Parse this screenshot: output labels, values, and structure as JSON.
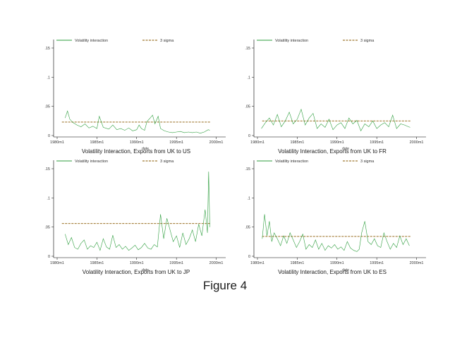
{
  "figure_caption": "Figure 4",
  "colors": {
    "series": "#2e9e3e",
    "threshold": "#8a5a00",
    "axis": "#000000"
  },
  "chart_data": [
    {
      "type": "line",
      "title": "Volatility Interaction, Exports from UK to US",
      "xlabel": "date",
      "ylabel": "",
      "xlim": [
        1980,
        2000.75
      ],
      "ylim": [
        0,
        0.15
      ],
      "xticks": [
        "1980m1",
        "1985m1",
        "1990m1",
        "1995m1",
        "2000m1"
      ],
      "yticks": [
        "0",
        ".05",
        ".1",
        ".15"
      ],
      "grid": false,
      "legend_position": "top",
      "legend": [
        "Volatility interaction",
        "3 sigma"
      ],
      "threshold": 0.023,
      "series": [
        {
          "name": "Volatility interaction",
          "x": [
            1981.0,
            1981.3,
            1981.6,
            1982.0,
            1982.5,
            1983.0,
            1983.5,
            1984.0,
            1984.5,
            1985.0,
            1985.3,
            1985.8,
            1986.5,
            1987.0,
            1987.5,
            1988.0,
            1988.5,
            1989.0,
            1989.5,
            1990.0,
            1990.3,
            1990.6,
            1991.0,
            1991.3,
            1991.7,
            1992.0,
            1992.3,
            1992.7,
            1993.0,
            1993.5,
            1994.0,
            1994.5,
            1995.0,
            1995.5,
            1996.0,
            1996.5,
            1997.0,
            1997.5,
            1998.0,
            1998.5,
            1999.0,
            1999.2
          ],
          "values": [
            0.03,
            0.042,
            0.028,
            0.022,
            0.018,
            0.015,
            0.02,
            0.013,
            0.016,
            0.012,
            0.033,
            0.014,
            0.011,
            0.018,
            0.01,
            0.012,
            0.009,
            0.013,
            0.008,
            0.01,
            0.018,
            0.012,
            0.009,
            0.024,
            0.03,
            0.035,
            0.02,
            0.033,
            0.012,
            0.008,
            0.006,
            0.005,
            0.006,
            0.007,
            0.005,
            0.006,
            0.005,
            0.006,
            0.004,
            0.006,
            0.01,
            0.009
          ]
        }
      ]
    },
    {
      "type": "line",
      "title": "Volatility Interaction, Exports from UK to FR",
      "xlabel": "date",
      "ylabel": "",
      "xlim": [
        1980,
        2000.75
      ],
      "ylim": [
        0,
        0.15
      ],
      "xticks": [
        "1980m1",
        "1985m1",
        "1990m1",
        "1995m1",
        "2000m1"
      ],
      "yticks": [
        "0",
        ".05",
        ".1",
        ".15"
      ],
      "grid": false,
      "legend_position": "top",
      "legend": [
        "Volatility interaction",
        "3 sigma"
      ],
      "threshold": 0.025,
      "series": [
        {
          "name": "Volatility interaction",
          "x": [
            1980.5,
            1981.0,
            1981.5,
            1982.0,
            1982.5,
            1983.0,
            1983.5,
            1984.0,
            1984.5,
            1985.0,
            1985.5,
            1986.0,
            1986.5,
            1987.0,
            1987.5,
            1988.0,
            1988.5,
            1989.0,
            1989.5,
            1990.0,
            1990.5,
            1991.0,
            1991.5,
            1992.0,
            1992.5,
            1993.0,
            1993.5,
            1994.0,
            1994.5,
            1995.0,
            1995.5,
            1996.0,
            1996.5,
            1997.0,
            1997.5,
            1998.0,
            1998.5,
            1999.0,
            1999.2
          ],
          "values": [
            0.012,
            0.022,
            0.03,
            0.018,
            0.036,
            0.015,
            0.025,
            0.04,
            0.02,
            0.028,
            0.045,
            0.018,
            0.03,
            0.038,
            0.012,
            0.02,
            0.014,
            0.028,
            0.01,
            0.018,
            0.022,
            0.012,
            0.03,
            0.02,
            0.026,
            0.008,
            0.02,
            0.015,
            0.025,
            0.012,
            0.018,
            0.022,
            0.015,
            0.035,
            0.012,
            0.02,
            0.018,
            0.015,
            0.014
          ]
        }
      ]
    },
    {
      "type": "line",
      "title": "Volatility Interaction, Exports from UK to JP",
      "xlabel": "date",
      "ylabel": "",
      "xlim": [
        1980,
        2000.75
      ],
      "ylim": [
        0,
        0.15
      ],
      "xticks": [
        "1980m1",
        "1985m1",
        "1990m1",
        "1995m1",
        "2000m1"
      ],
      "yticks": [
        "0",
        ".05",
        ".1",
        ".15"
      ],
      "grid": false,
      "legend_position": "top",
      "legend": [
        "Volatility interaction",
        "3 sigma"
      ],
      "threshold": 0.056,
      "series": [
        {
          "name": "Volatility interaction",
          "x": [
            1981.0,
            1981.4,
            1981.8,
            1982.2,
            1982.6,
            1983.0,
            1983.4,
            1983.8,
            1984.2,
            1984.6,
            1985.0,
            1985.4,
            1985.8,
            1986.2,
            1986.6,
            1987.0,
            1987.4,
            1987.8,
            1988.2,
            1988.6,
            1989.0,
            1989.4,
            1989.8,
            1990.2,
            1990.6,
            1991.0,
            1991.4,
            1991.8,
            1992.2,
            1992.6,
            1993.0,
            1993.4,
            1993.8,
            1994.2,
            1994.6,
            1995.0,
            1995.4,
            1995.8,
            1996.2,
            1996.6,
            1997.0,
            1997.4,
            1997.8,
            1998.2,
            1998.6,
            1998.9,
            1999.05,
            1999.2
          ],
          "values": [
            0.038,
            0.02,
            0.032,
            0.015,
            0.012,
            0.022,
            0.028,
            0.012,
            0.018,
            0.015,
            0.024,
            0.01,
            0.03,
            0.016,
            0.012,
            0.036,
            0.015,
            0.02,
            0.012,
            0.017,
            0.01,
            0.014,
            0.019,
            0.011,
            0.015,
            0.022,
            0.014,
            0.012,
            0.02,
            0.016,
            0.072,
            0.03,
            0.065,
            0.045,
            0.025,
            0.035,
            0.015,
            0.04,
            0.02,
            0.03,
            0.045,
            0.025,
            0.055,
            0.035,
            0.08,
            0.04,
            0.145,
            0.05
          ]
        }
      ]
    },
    {
      "type": "line",
      "title": "Volatility Interaction, Exports from UK to ES",
      "xlabel": "date",
      "ylabel": "",
      "xlim": [
        1980,
        2000.75
      ],
      "ylim": [
        0,
        0.15
      ],
      "xticks": [
        "1980m1",
        "1985m1",
        "1990m1",
        "1995m1",
        "2000m1"
      ],
      "yticks": [
        "0",
        ".05",
        ".1",
        ".15"
      ],
      "grid": false,
      "legend_position": "top",
      "legend": [
        "Volatility interaction",
        "3 sigma"
      ],
      "threshold": 0.034,
      "series": [
        {
          "name": "Volatility interaction",
          "x": [
            1980.6,
            1980.9,
            1981.2,
            1981.5,
            1981.8,
            1982.1,
            1982.5,
            1982.9,
            1983.3,
            1983.7,
            1984.1,
            1984.5,
            1984.9,
            1985.3,
            1985.7,
            1986.1,
            1986.5,
            1986.9,
            1987.3,
            1987.7,
            1988.1,
            1988.5,
            1988.9,
            1989.3,
            1989.7,
            1990.1,
            1990.5,
            1990.9,
            1991.3,
            1991.7,
            1992.1,
            1992.5,
            1992.8,
            1993.1,
            1993.5,
            1993.9,
            1994.3,
            1994.7,
            1995.1,
            1995.5,
            1995.9,
            1996.3,
            1996.7,
            1997.1,
            1997.5,
            1997.9,
            1998.3,
            1998.7,
            1999.1
          ],
          "values": [
            0.03,
            0.072,
            0.035,
            0.06,
            0.025,
            0.04,
            0.03,
            0.018,
            0.035,
            0.022,
            0.04,
            0.028,
            0.015,
            0.025,
            0.038,
            0.012,
            0.02,
            0.015,
            0.028,
            0.012,
            0.022,
            0.01,
            0.018,
            0.014,
            0.02,
            0.012,
            0.016,
            0.01,
            0.025,
            0.014,
            0.01,
            0.008,
            0.012,
            0.04,
            0.06,
            0.025,
            0.02,
            0.03,
            0.018,
            0.015,
            0.04,
            0.025,
            0.012,
            0.022,
            0.015,
            0.035,
            0.02,
            0.03,
            0.018
          ]
        }
      ]
    }
  ]
}
